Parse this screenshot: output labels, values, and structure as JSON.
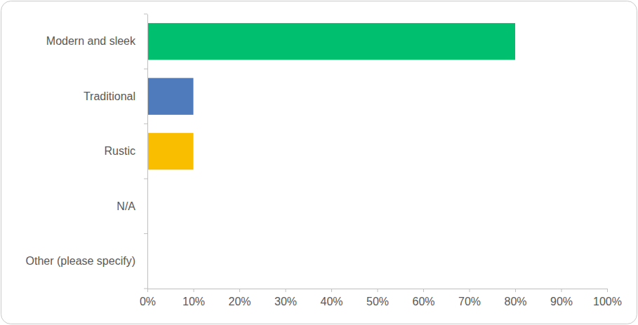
{
  "chart_data": {
    "type": "bar",
    "orientation": "horizontal",
    "categories": [
      "Modern and sleek",
      "Traditional",
      "Rustic",
      "N/A",
      "Other (please specify)"
    ],
    "values": [
      80,
      10,
      10,
      0,
      0
    ],
    "colors": [
      "#00bf6f",
      "#4f7bbd",
      "#f9be00",
      "#00bf6f",
      "#4f7bbd"
    ],
    "xlim": [
      0,
      100
    ],
    "xticks": [
      {
        "value": 0,
        "label": "0%"
      },
      {
        "value": 10,
        "label": "10%"
      },
      {
        "value": 20,
        "label": "20%"
      },
      {
        "value": 30,
        "label": "30%"
      },
      {
        "value": 40,
        "label": "40%"
      },
      {
        "value": 50,
        "label": "50%"
      },
      {
        "value": 60,
        "label": "60%"
      },
      {
        "value": 70,
        "label": "70%"
      },
      {
        "value": 80,
        "label": "80%"
      },
      {
        "value": 90,
        "label": "90%"
      },
      {
        "value": 100,
        "label": "100%"
      }
    ],
    "grid": false
  }
}
